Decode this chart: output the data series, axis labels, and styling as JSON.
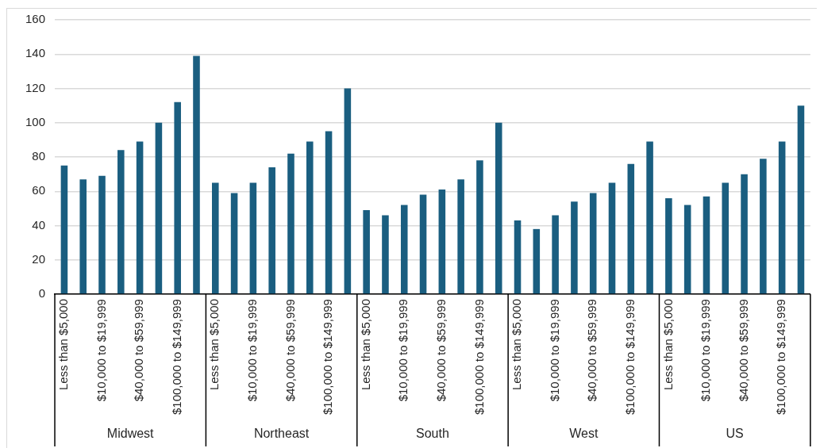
{
  "chart_data": {
    "type": "bar",
    "categories": [
      "Less than $5,000",
      null,
      "$10,000 to $19,999",
      null,
      "$40,000 to $59,999",
      null,
      "$100,000 to $149,999",
      null,
      "Less than $5,000",
      null,
      "$10,000 to $19,999",
      null,
      "$40,000 to $59,999",
      null,
      "$100,000 to $149,999",
      null,
      "Less than $5,000",
      null,
      "$10,000 to $19,999",
      null,
      "$40,000 to $59,999",
      null,
      "$100,000 to $149,999",
      null,
      "Less than $5,000",
      null,
      "$10,000 to $19,999",
      null,
      "$40,000 to $59,999",
      null,
      "$100,000 to $149,999",
      null,
      "Less than $5,000",
      null,
      "$10,000 to $19,999",
      null,
      "$40,000 to $59,999",
      null,
      "$100,000 to $149,999",
      null
    ],
    "values": [
      75,
      67,
      69,
      84,
      89,
      100,
      112,
      139,
      65,
      59,
      65,
      74,
      82,
      89,
      95,
      120,
      49,
      46,
      52,
      58,
      61,
      67,
      78,
      100,
      43,
      38,
      46,
      54,
      59,
      65,
      76,
      89,
      56,
      52,
      57,
      65,
      70,
      79,
      89,
      110
    ],
    "color": "#1a5e80",
    "ylim": [
      0,
      160
    ],
    "yticks": [
      0,
      20,
      40,
      60,
      80,
      100,
      120,
      140,
      160
    ],
    "grid": "y",
    "legend": false,
    "annotations": [
      "Midwest",
      "Northeast",
      "South",
      "West",
      "US"
    ]
  }
}
